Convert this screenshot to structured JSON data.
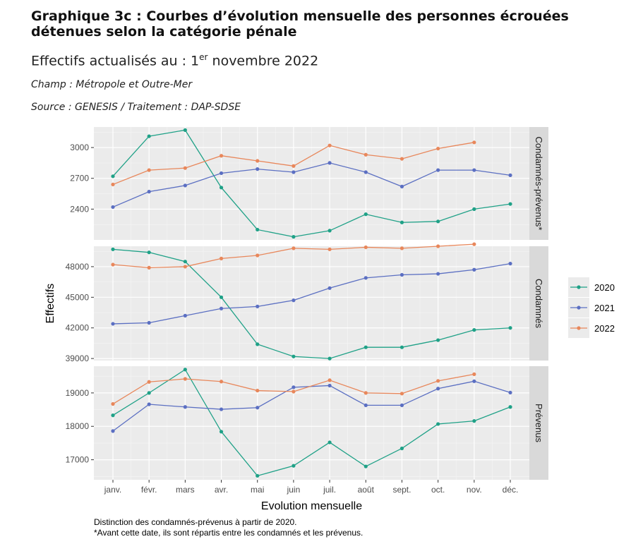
{
  "header": {
    "title": "Graphique 3c : Courbes d’évolution mensuelle des personnes écrouées détenues selon la catégorie pénale",
    "subtitle_prefix": "Effectifs actualisés au : 1",
    "subtitle_sup": "er",
    "subtitle_suffix": " novembre 2022",
    "champ": "Champ : Métropole et Outre-Mer",
    "source": "Source : GENESIS / Traitement : DAP-SDSE"
  },
  "notes": [
    "Distinction des condamnés-prévenus à partir de 2020.",
    "*Avant cette date, ils sont répartis entre les condamnés et les prévenus."
  ],
  "colors": {
    "2020": "#1fa187",
    "2021": "#5b6fc2",
    "2022": "#e8875b"
  },
  "chart_data": {
    "type": "line",
    "xlabel": "Evolution mensuelle",
    "ylabel": "Effectifs",
    "categories": [
      "janv.",
      "févr.",
      "mars",
      "avr.",
      "mai",
      "juin",
      "juil.",
      "août",
      "sept.",
      "oct.",
      "nov.",
      "déc."
    ],
    "legend": {
      "position": "right",
      "entries": [
        "2020",
        "2021",
        "2022"
      ]
    },
    "grid": true,
    "panels": [
      {
        "label": "Condamnés-prévenus*",
        "ylim": [
          2100,
          3200
        ],
        "yticks": [
          2400,
          2700,
          3000
        ],
        "series": [
          {
            "name": "2020",
            "values": [
              2720,
              3110,
              3170,
              2610,
              2200,
              2130,
              2190,
              2350,
              2270,
              2280,
              2400,
              2450
            ]
          },
          {
            "name": "2021",
            "values": [
              2420,
              2570,
              2630,
              2750,
              2790,
              2760,
              2850,
              2760,
              2620,
              2780,
              2780,
              2730
            ]
          },
          {
            "name": "2022",
            "values": [
              2640,
              2780,
              2800,
              2920,
              2870,
              2820,
              3020,
              2930,
              2890,
              2990,
              3050,
              null
            ]
          }
        ]
      },
      {
        "label": "Condamnés",
        "ylim": [
          38800,
          50000
        ],
        "yticks": [
          39000,
          42000,
          45000,
          48000
        ],
        "series": [
          {
            "name": "2020",
            "values": [
              49700,
              49400,
              48500,
              45000,
              40400,
              39200,
              39000,
              40100,
              40100,
              40800,
              41800,
              42000
            ]
          },
          {
            "name": "2021",
            "values": [
              42400,
              42500,
              43200,
              43900,
              44100,
              44700,
              45900,
              46900,
              47200,
              47300,
              47700,
              48300
            ]
          },
          {
            "name": "2022",
            "values": [
              48200,
              47900,
              48000,
              48800,
              49100,
              49800,
              49700,
              49900,
              49800,
              50000,
              50200,
              null
            ]
          }
        ]
      },
      {
        "label": "Prévenus",
        "ylim": [
          16400,
          19800
        ],
        "yticks": [
          17000,
          18000,
          19000
        ],
        "series": [
          {
            "name": "2020",
            "values": [
              18330,
              19000,
              19700,
              17840,
              16520,
              16820,
              17520,
              16800,
              17340,
              18070,
              18160,
              18580
            ]
          },
          {
            "name": "2021",
            "values": [
              17860,
              18660,
              18580,
              18510,
              18560,
              19170,
              19220,
              18630,
              18630,
              19130,
              19350,
              19010
            ]
          },
          {
            "name": "2022",
            "values": [
              18670,
              19330,
              19420,
              19340,
              19070,
              19040,
              19380,
              19000,
              18980,
              19360,
              19560,
              null
            ]
          }
        ]
      }
    ]
  }
}
